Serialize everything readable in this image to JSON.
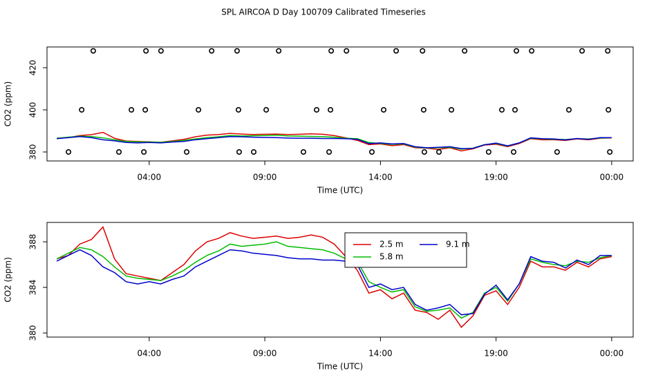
{
  "title": "SPL AIRCOA D  Day 100709  Calibrated Timeseries",
  "chart_data": [
    {
      "type": "line",
      "x_label": "Time (UTC)",
      "y_label": "CO2 (ppm)",
      "xlim": [
        -0.42,
        24.93
      ],
      "ylim": [
        375.74,
        429.84
      ],
      "xticks": [
        {
          "value": 4,
          "label": "04:00"
        },
        {
          "value": 9,
          "label": "09:00"
        },
        {
          "value": 14,
          "label": "14:00"
        },
        {
          "value": 19,
          "label": "19:00"
        },
        {
          "value": 24,
          "label": "00:00"
        }
      ],
      "yticks": [
        380,
        400,
        420
      ],
      "x": [
        0,
        0.5,
        1,
        1.5,
        2,
        2.5,
        3,
        3.5,
        4,
        4.5,
        5,
        5.5,
        6,
        6.5,
        7,
        7.5,
        8,
        8.5,
        9,
        9.5,
        10,
        10.5,
        11,
        11.5,
        12,
        12.5,
        13,
        13.5,
        14,
        14.5,
        15,
        15.5,
        16,
        16.5,
        17,
        17.5,
        18,
        18.5,
        19,
        19.5,
        20,
        20.5,
        21,
        21.5,
        22,
        22.5,
        23,
        23.5,
        24
      ],
      "series": [
        {
          "color": "#dd0000",
          "values": [
            386.5,
            386.8,
            387.8,
            388.2,
            389.3,
            386.5,
            385.2,
            385,
            384.8,
            384.6,
            385.3,
            386,
            387.2,
            388,
            388.3,
            388.8,
            388.5,
            388.3,
            388.4,
            388.5,
            388.3,
            388.4,
            388.6,
            388.4,
            387.8,
            386.7,
            385.5,
            383.5,
            383.8,
            383,
            383.5,
            382,
            381.8,
            381.2,
            382,
            380.5,
            381.5,
            383.3,
            383.7,
            382.5,
            384,
            386.3,
            385.8,
            385.8,
            385.5,
            386.2,
            385.8,
            386.5,
            386.7
          ]
        },
        {
          "color": "#00bb00",
          "values": [
            386.5,
            387,
            387.5,
            387.3,
            386.7,
            385.8,
            385,
            384.8,
            384.7,
            384.6,
            385,
            385.5,
            386.2,
            386.8,
            387.2,
            387.8,
            387.6,
            387.7,
            387.8,
            388,
            387.6,
            387.5,
            387.4,
            387.3,
            387,
            386.5,
            386.3,
            384.5,
            384,
            383.6,
            383.8,
            382.3,
            381.9,
            382,
            382.2,
            381.3,
            381.8,
            383.5,
            384,
            382.8,
            384.3,
            386.5,
            386.2,
            386,
            385.9,
            386.3,
            386.2,
            386.6,
            386.8
          ]
        },
        {
          "color": "#0000cc",
          "values": [
            386.3,
            386.8,
            387.3,
            386.8,
            385.8,
            385.3,
            384.5,
            384.3,
            384.5,
            384.3,
            384.7,
            385,
            385.8,
            386.3,
            386.8,
            387.3,
            387.2,
            387,
            386.9,
            386.8,
            386.6,
            386.5,
            386.5,
            386.4,
            386.4,
            386.3,
            386,
            384,
            384.3,
            383.8,
            384,
            382.5,
            382,
            382.2,
            382.5,
            381.6,
            381.7,
            383.4,
            384.2,
            382.9,
            384.3,
            386.7,
            386.3,
            386.2,
            385.7,
            386.4,
            386,
            386.8,
            386.8
          ]
        }
      ],
      "points": {
        "color": "#000000",
        "x": [
          1.58,
          3.86,
          4.51,
          6.7,
          7.8,
          9.6,
          11.87,
          12.53,
          14.68,
          15.82,
          17.64,
          19.88,
          20.54,
          22.72,
          23.83,
          1.08,
          3.23,
          3.83,
          6.13,
          7.86,
          9.06,
          11.24,
          11.84,
          14.14,
          15.87,
          17.07,
          19.25,
          19.82,
          22.15,
          23.86,
          0.51,
          2.69,
          3.77,
          5.62,
          7.89,
          8.52,
          10.67,
          11.78,
          13.63,
          15.9,
          16.53,
          18.68,
          19.76,
          21.64,
          23.92
        ],
        "y": [
          428,
          428,
          428,
          428,
          428,
          428,
          428,
          428,
          428,
          428,
          428,
          428,
          428,
          428,
          428,
          400,
          400,
          400,
          400,
          400,
          400,
          400,
          400,
          400,
          400,
          400,
          400,
          400,
          400,
          400,
          380,
          380,
          380,
          380,
          380,
          380,
          380,
          380,
          380,
          380,
          380,
          380,
          380,
          380,
          380
        ]
      }
    },
    {
      "type": "line",
      "x_label": "Time (UTC)",
      "y_label": "CO2 (ppm)",
      "xlim": [
        -0.42,
        24.93
      ],
      "ylim": [
        379.64,
        389.7
      ],
      "xticks": [
        {
          "value": 4,
          "label": "04:00"
        },
        {
          "value": 9,
          "label": "09:00"
        },
        {
          "value": 14,
          "label": "14:00"
        },
        {
          "value": 19,
          "label": "19:00"
        },
        {
          "value": 24,
          "label": "00:00"
        }
      ],
      "yticks": [
        380,
        384,
        388
      ],
      "legend": "top",
      "x": [
        0,
        0.5,
        1,
        1.5,
        2,
        2.5,
        3,
        3.5,
        4,
        4.5,
        5,
        5.5,
        6,
        6.5,
        7,
        7.5,
        8,
        8.5,
        9,
        9.5,
        10,
        10.5,
        11,
        11.5,
        12,
        12.5,
        13,
        13.5,
        14,
        14.5,
        15,
        15.5,
        16,
        16.5,
        17,
        17.5,
        18,
        18.5,
        19,
        19.5,
        20,
        20.5,
        21,
        21.5,
        22,
        22.5,
        23,
        23.5,
        24
      ],
      "series": [
        {
          "name": "2.5 m",
          "color": "#dd0000",
          "values": [
            386.5,
            386.8,
            387.8,
            388.2,
            389.3,
            386.5,
            385.2,
            385,
            384.8,
            384.6,
            385.3,
            386,
            387.2,
            388,
            388.3,
            388.8,
            388.5,
            388.3,
            388.4,
            388.5,
            388.3,
            388.4,
            388.6,
            388.4,
            387.8,
            386.7,
            385.5,
            383.5,
            383.8,
            383,
            383.5,
            382,
            381.8,
            381.2,
            382,
            380.5,
            381.5,
            383.3,
            383.7,
            382.5,
            384,
            386.3,
            385.8,
            385.8,
            385.5,
            386.2,
            385.8,
            386.5,
            386.7
          ]
        },
        {
          "name": "5.8 m",
          "color": "#00bb00",
          "values": [
            386.5,
            387,
            387.5,
            387.3,
            386.7,
            385.8,
            385,
            384.8,
            384.7,
            384.6,
            385,
            385.5,
            386.2,
            386.8,
            387.2,
            387.8,
            387.6,
            387.7,
            387.8,
            388,
            387.6,
            387.5,
            387.4,
            387.3,
            387,
            386.5,
            386.3,
            384.5,
            384,
            383.6,
            383.8,
            382.3,
            381.9,
            382,
            382.2,
            381.3,
            381.8,
            383.5,
            384,
            382.8,
            384.3,
            386.5,
            386.2,
            386,
            385.9,
            386.3,
            386.2,
            386.6,
            386.8
          ]
        },
        {
          "name": "9.1 m",
          "color": "#0000cc",
          "values": [
            386.3,
            386.8,
            387.3,
            386.8,
            385.8,
            385.3,
            384.5,
            384.3,
            384.5,
            384.3,
            384.7,
            385,
            385.8,
            386.3,
            386.8,
            387.3,
            387.2,
            387,
            386.9,
            386.8,
            386.6,
            386.5,
            386.5,
            386.4,
            386.4,
            386.3,
            386,
            384,
            384.3,
            383.8,
            384,
            382.5,
            382,
            382.2,
            382.5,
            381.6,
            381.7,
            383.4,
            384.2,
            382.9,
            384.3,
            386.7,
            386.3,
            386.2,
            385.7,
            386.4,
            386,
            386.8,
            386.8
          ]
        }
      ]
    }
  ]
}
